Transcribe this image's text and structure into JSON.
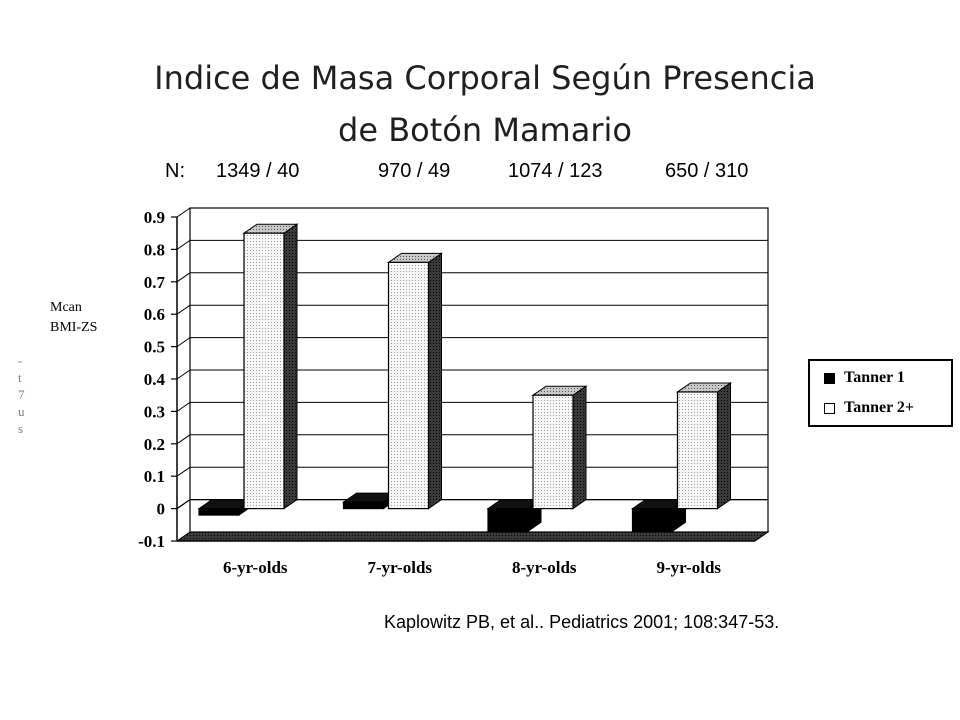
{
  "slide": {
    "title_line1": "Indice de Masa Corporal Según Presencia",
    "title_line2": "de Botón Mamario",
    "citation": "Kaplowitz PB, et al.. Pediatrics 2001; 108:347-53.",
    "cutoff_fragments": [
      "-",
      "t",
      "7",
      "u",
      "s"
    ]
  },
  "chart_data": {
    "type": "bar",
    "n_label": "N:",
    "n_values": [
      "1349 / 40",
      "970 / 49",
      "1074 / 123",
      "650 / 310"
    ],
    "categories": [
      "6-yr-olds",
      "7-yr-olds",
      "8-yr-olds",
      "9-yr-olds"
    ],
    "series": [
      {
        "name": "Tanner 1",
        "values": [
          -0.02,
          0.02,
          -0.07,
          -0.07
        ],
        "color": "#000000"
      },
      {
        "name": "Tanner 2+",
        "values": [
          0.85,
          0.76,
          0.35,
          0.36
        ],
        "color": "#f2f2f2"
      }
    ],
    "ylabel_line1": "Mcan",
    "ylabel_line2": "BMI-ZS",
    "ylim": [
      -0.1,
      0.9
    ],
    "yticks": [
      "0.9",
      "0.8",
      "0.7",
      "0.6",
      "0.5",
      "0.4",
      "0.3",
      "0.2",
      "0.1",
      "0",
      "-0.1"
    ],
    "grid": true,
    "legend_position": "right",
    "style": "3d-bar"
  }
}
